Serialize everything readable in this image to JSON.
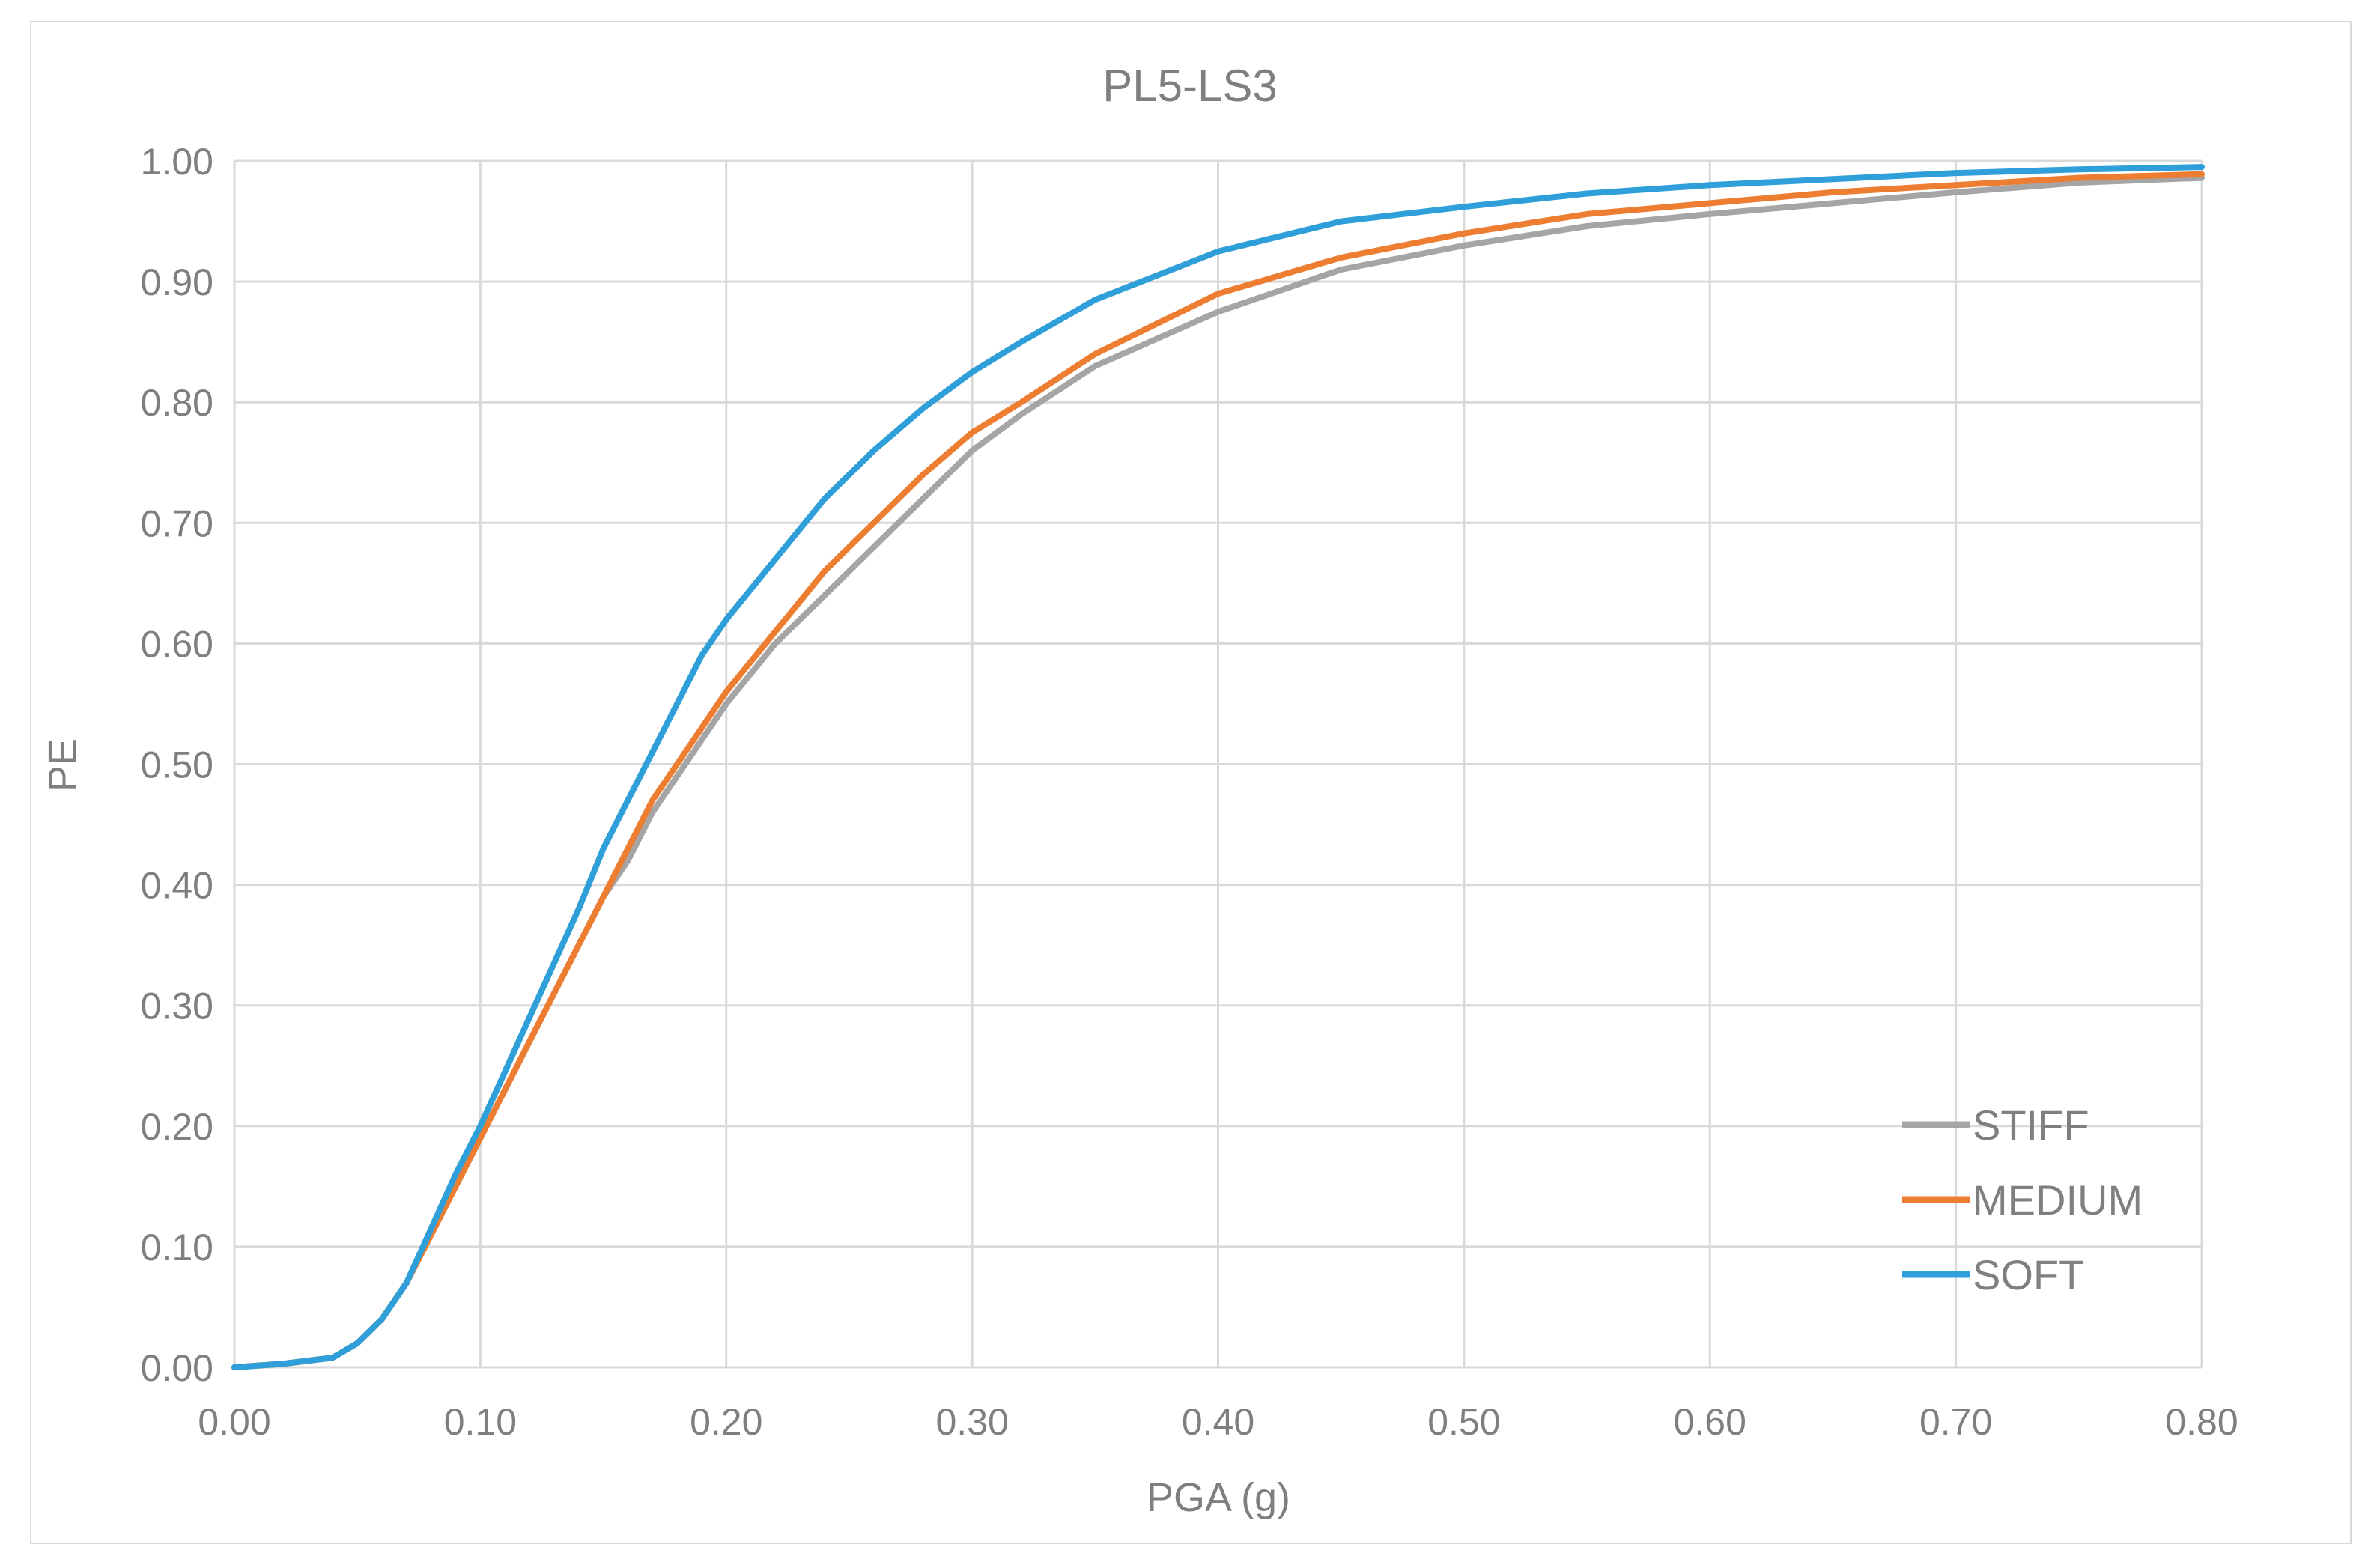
{
  "chart_data": {
    "type": "line",
    "title": "PL5-LS3",
    "xlabel": "PGA (g)",
    "ylabel": "PE",
    "xlim": [
      0,
      0.8
    ],
    "ylim": [
      0,
      1
    ],
    "x_ticks": [
      "0.00",
      "0.10",
      "0.20",
      "0.30",
      "0.40",
      "0.50",
      "0.60",
      "0.70",
      "0.80"
    ],
    "y_ticks": [
      "0.00",
      "0.10",
      "0.20",
      "0.30",
      "0.40",
      "0.50",
      "0.60",
      "0.70",
      "0.80",
      "0.90",
      "1.00"
    ],
    "grid": true,
    "legend_position": "bottom-right",
    "x": [
      0.0,
      0.02,
      0.04,
      0.05,
      0.06,
      0.07,
      0.08,
      0.09,
      0.1,
      0.11,
      0.12,
      0.13,
      0.14,
      0.15,
      0.16,
      0.17,
      0.18,
      0.19,
      0.2,
      0.22,
      0.24,
      0.26,
      0.28,
      0.3,
      0.32,
      0.35,
      0.4,
      0.45,
      0.5,
      0.55,
      0.6,
      0.65,
      0.7,
      0.75,
      0.8
    ],
    "series": [
      {
        "name": "STIFF",
        "color": "#a5a5a5",
        "values": [
          0.0,
          0.003,
          0.008,
          0.02,
          0.04,
          0.07,
          0.11,
          0.15,
          0.19,
          0.23,
          0.27,
          0.31,
          0.35,
          0.39,
          0.42,
          0.46,
          0.49,
          0.52,
          0.55,
          0.6,
          0.64,
          0.68,
          0.72,
          0.76,
          0.79,
          0.83,
          0.875,
          0.91,
          0.93,
          0.946,
          0.956,
          0.965,
          0.974,
          0.982,
          0.986
        ]
      },
      {
        "name": "MEDIUM",
        "color": "#ed7d31",
        "values": [
          0.0,
          0.003,
          0.008,
          0.02,
          0.04,
          0.07,
          0.11,
          0.15,
          0.19,
          0.23,
          0.27,
          0.31,
          0.35,
          0.39,
          0.43,
          0.47,
          0.5,
          0.53,
          0.56,
          0.61,
          0.66,
          0.7,
          0.74,
          0.775,
          0.8,
          0.84,
          0.89,
          0.92,
          0.94,
          0.956,
          0.965,
          0.974,
          0.98,
          0.986,
          0.989
        ]
      },
      {
        "name": "SOFT",
        "color": "#2e9fd8",
        "values": [
          0.0,
          0.003,
          0.008,
          0.02,
          0.04,
          0.07,
          0.115,
          0.16,
          0.2,
          0.245,
          0.29,
          0.335,
          0.38,
          0.43,
          0.47,
          0.51,
          0.55,
          0.59,
          0.62,
          0.67,
          0.72,
          0.76,
          0.795,
          0.825,
          0.85,
          0.885,
          0.925,
          0.95,
          0.962,
          0.973,
          0.98,
          0.985,
          0.99,
          0.993,
          0.995
        ]
      }
    ]
  }
}
